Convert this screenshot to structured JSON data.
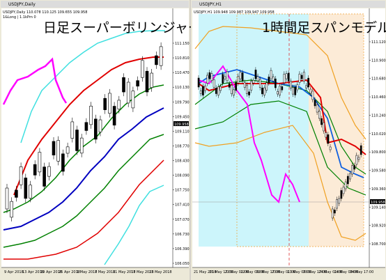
{
  "left_window": {
    "title": "USDJPY,Daily",
    "info": "USDJPY,Daily 110.078 110.125 109.655 109.958",
    "indicator": "1&Long | 1.1kPrn 0",
    "overlay_title": "日足スーパーボリンジャー",
    "price_labels": [
      "111.150",
      "110.810",
      "110.470",
      "110.130",
      "109.790",
      "109.450",
      "109.110",
      "108.770",
      "108.430",
      "108.090",
      "107.750",
      "107.410",
      "107.070",
      "106.730",
      "106.390",
      "106.050"
    ],
    "current_price": "109.958",
    "date_labels": [
      "9 Apr 2018",
      "13 Apr 2018",
      "19 Apr 2018",
      "25 Apr 2018",
      "1 May 2018",
      "7 May 2018",
      "11 May 2018",
      "17 May 2018",
      "23 May 2018"
    ]
  },
  "right_window": {
    "title": "USDJPY,H1",
    "info": "USDJPY,H1 109.948 109.987 109.947 109.958",
    "overlay_title": "1時間足スパンモデル",
    "price_labels": [
      "111.120",
      "110.900",
      "110.680",
      "110.460",
      "110.240",
      "110.020",
      "109.800",
      "109.580",
      "109.360",
      "109.140",
      "108.920",
      "108.700"
    ],
    "current_price": "109.958",
    "date_labels": [
      "21 May 2018",
      "21 May 17:00",
      "22 May 01:00",
      "22 May 09:00",
      "22 May 17:00",
      "23 May 01:00",
      "23 May 09:00",
      "23 May 17:00",
      "24 May 01:00",
      "24 May 09:00",
      "24 May 17:00"
    ]
  }
}
